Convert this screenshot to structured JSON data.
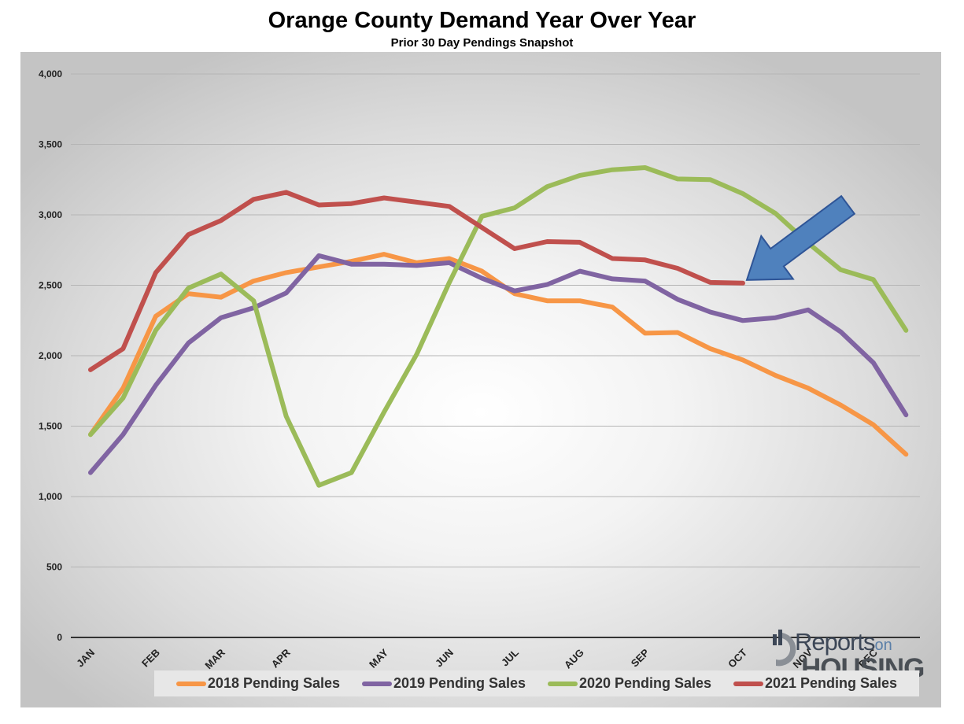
{
  "title": "Orange County Demand Year Over Year",
  "subtitle": "Prior 30 Day Pendings Snapshot",
  "logo": {
    "word1": "Reports",
    "word2": "on",
    "word3": "HOUSING"
  },
  "colors": {
    "2018": "#f79646",
    "2019": "#8064a2",
    "2020": "#9bbb59",
    "2021": "#c0504d",
    "arrow": "#4f81bd"
  },
  "chart_data": {
    "type": "line",
    "title": "Orange County Demand Year Over Year",
    "subtitle": "Prior 30 Day Pendings Snapshot",
    "ylim": [
      0,
      4000
    ],
    "y_ticks": [
      0,
      500,
      1000,
      1500,
      2000,
      2500,
      3000,
      3500,
      4000
    ],
    "y_tick_labels": [
      "0",
      "500",
      "1,000",
      "1,500",
      "2,000",
      "2,500",
      "3,000",
      "3,500",
      "4,000"
    ],
    "grid": true,
    "legend_position": "bottom",
    "x_count": 26,
    "x_tick_labels": [
      {
        "i": 0,
        "label": "JAN"
      },
      {
        "i": 2,
        "label": "FEB"
      },
      {
        "i": 4,
        "label": "MAR"
      },
      {
        "i": 6,
        "label": "APR"
      },
      {
        "i": 9,
        "label": "MAY"
      },
      {
        "i": 11,
        "label": "JUN"
      },
      {
        "i": 13,
        "label": "JUL"
      },
      {
        "i": 15,
        "label": "AUG"
      },
      {
        "i": 17,
        "label": "SEP"
      },
      {
        "i": 20,
        "label": "OCT"
      },
      {
        "i": 22,
        "label": "NOV"
      },
      {
        "i": 24,
        "label": "DEC"
      }
    ],
    "series": [
      {
        "name": "2018 Pending Sales",
        "color": "#f79646",
        "values": [
          1440,
          1770,
          2280,
          2440,
          2415,
          2530,
          2590,
          2630,
          2670,
          2720,
          2660,
          2690,
          2600,
          2440,
          2390,
          2390,
          2345,
          2160,
          2165,
          2050,
          1970,
          1860,
          1770,
          1650,
          1510,
          1300
        ]
      },
      {
        "name": "2019 Pending Sales",
        "color": "#8064a2",
        "values": [
          1170,
          1440,
          1790,
          2090,
          2270,
          2340,
          2445,
          2710,
          2650,
          2650,
          2640,
          2660,
          2550,
          2460,
          2505,
          2600,
          2545,
          2530,
          2400,
          2310,
          2250,
          2270,
          2325,
          2170,
          1950,
          1580
        ]
      },
      {
        "name": "2020 Pending Sales",
        "color": "#9bbb59",
        "values": [
          1440,
          1700,
          2180,
          2480,
          2580,
          2390,
          1570,
          1080,
          1170,
          1600,
          2010,
          2520,
          2990,
          3050,
          3200,
          3280,
          3320,
          3335,
          3255,
          3250,
          3150,
          3010,
          2800,
          2610,
          2540,
          2180
        ]
      },
      {
        "name": "2021 Pending Sales",
        "color": "#c0504d",
        "values": [
          1900,
          2050,
          2590,
          2860,
          2960,
          3110,
          3160,
          3070,
          3080,
          3120,
          3090,
          3060,
          2910,
          2760,
          2810,
          2805,
          2690,
          2680,
          2620,
          2520,
          2515
        ]
      }
    ],
    "annotation": "arrow pointing to latest 2021 value"
  }
}
